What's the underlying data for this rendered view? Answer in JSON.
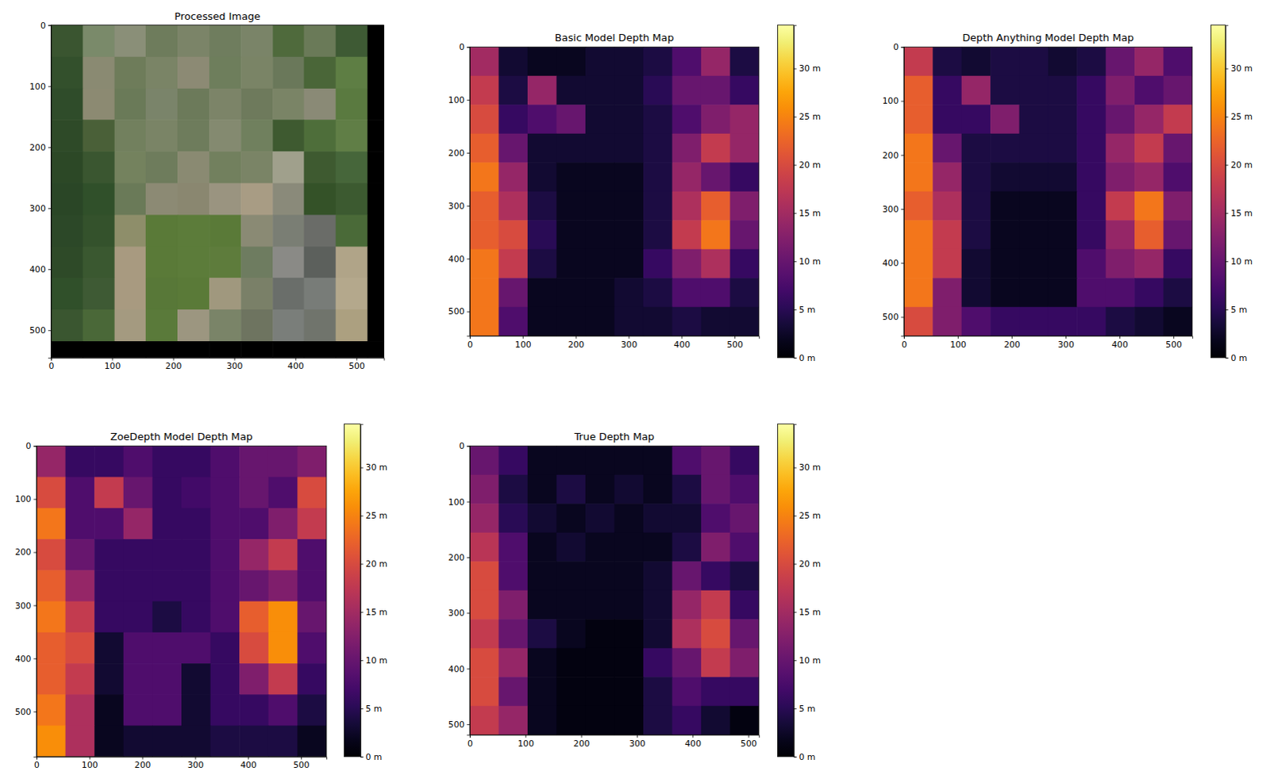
{
  "chart_data": [
    {
      "type": "image",
      "title": "Processed Image",
      "xlim": [
        0,
        545
      ],
      "ylim": [
        545,
        0
      ],
      "xticks": [
        0,
        100,
        200,
        300,
        400,
        500
      ],
      "yticks": [
        0,
        100,
        200,
        300,
        400,
        500
      ],
      "x_edges": [
        0,
        52,
        104,
        155,
        207,
        259,
        311,
        363,
        414,
        466,
        518,
        545
      ],
      "y_edges": [
        0,
        52,
        104,
        155,
        207,
        259,
        311,
        363,
        414,
        466,
        518,
        545
      ],
      "colors": [
        [
          "#3a5530",
          "#7a8a6a",
          "#8a8f78",
          "#6e7c5c",
          "#7b8468",
          "#6f7d5e",
          "#7a8468",
          "#4f6a3c",
          "#6a7a58",
          "#3e5a34",
          "#000000"
        ],
        [
          "#33502c",
          "#8a8a72",
          "#6e7c5a",
          "#7a8466",
          "#8c8a74",
          "#6e7e5c",
          "#7a8466",
          "#6a785a",
          "#4a6638",
          "#5e7e44",
          "#000000"
        ],
        [
          "#2f4c2a",
          "#8c8a72",
          "#6a7a58",
          "#7a846a",
          "#6c7a5a",
          "#7c8468",
          "#6e7a5c",
          "#7a8466",
          "#8a8a76",
          "#5a7a40",
          "#000000"
        ],
        [
          "#2e4a28",
          "#4a6038",
          "#72805e",
          "#7a8466",
          "#6e7c5c",
          "#848a70",
          "#70805e",
          "#3e5a30",
          "#4e6e3a",
          "#607e46",
          "#000000"
        ],
        [
          "#2c4826",
          "#3a5630",
          "#74825e",
          "#6e7c5c",
          "#8a8a72",
          "#72805e",
          "#7a8466",
          "#a0a08c",
          "#3e5a30",
          "#46663a",
          "#000000"
        ],
        [
          "#2a4626",
          "#30502a",
          "#6a7a58",
          "#8c8a74",
          "#8a8770",
          "#9a9480",
          "#a89c84",
          "#8a8a7a",
          "#345228",
          "#3c5a30",
          "#000000"
        ],
        [
          "#2c4828",
          "#34522c",
          "#8e8e6a",
          "#5a7a38",
          "#5c7c3a",
          "#5a7a38",
          "#8a8a74",
          "#7a7e74",
          "#6a6c68",
          "#4a6a38",
          "#000000"
        ],
        [
          "#2e4a28",
          "#3a5830",
          "#a89a80",
          "#5a7a38",
          "#5c7c3a",
          "#5e7c3c",
          "#6e7c60",
          "#8a8a86",
          "#5c605c",
          "#b0a488",
          "#000000"
        ],
        [
          "#30502a",
          "#3e5a34",
          "#a89a80",
          "#587838",
          "#5a7a38",
          "#a0987e",
          "#7a8068",
          "#6a6e6a",
          "#787c78",
          "#b4a88c",
          "#000000"
        ],
        [
          "#3a5630",
          "#4a6838",
          "#a49a80",
          "#5a7a3a",
          "#9c9680",
          "#7a8468",
          "#6e7460",
          "#7a7e7a",
          "#70746c",
          "#aca080",
          "#000000"
        ],
        [
          "#000000",
          "#000000",
          "#000000",
          "#000000",
          "#000000",
          "#000000",
          "#000000",
          "#000000",
          "#000000",
          "#000000",
          "#000000"
        ]
      ]
    },
    {
      "type": "heatmap",
      "title": "Basic Model Depth Map",
      "color": "inferno",
      "xlim": [
        0,
        546
      ],
      "ylim": [
        546,
        0
      ],
      "xticks": [
        0,
        100,
        200,
        300,
        400,
        500
      ],
      "yticks": [
        0,
        100,
        200,
        300,
        400,
        500
      ],
      "x_edges": [
        0,
        54.6,
        109.2,
        163.8,
        218.4,
        273,
        327.6,
        382.2,
        436.8,
        491.4,
        546
      ],
      "y_edges": [
        0,
        54.6,
        109.2,
        163.8,
        218.4,
        273,
        327.6,
        382.2,
        436.8,
        491.4,
        546
      ],
      "z": [
        [
          15,
          3,
          2,
          2,
          3,
          3,
          4,
          8,
          14,
          4
        ],
        [
          18,
          4,
          14,
          3,
          3,
          3,
          5,
          10,
          10,
          6
        ],
        [
          20,
          6,
          8,
          10,
          3,
          3,
          4,
          8,
          12,
          14
        ],
        [
          22,
          10,
          3,
          3,
          3,
          3,
          4,
          12,
          18,
          14
        ],
        [
          24,
          14,
          3,
          2,
          2,
          2,
          4,
          14,
          10,
          6
        ],
        [
          22,
          16,
          4,
          2,
          2,
          2,
          4,
          16,
          22,
          12
        ],
        [
          22,
          20,
          5,
          2,
          2,
          2,
          4,
          18,
          24,
          10
        ],
        [
          24,
          18,
          4,
          2,
          2,
          2,
          6,
          12,
          16,
          6
        ],
        [
          24,
          10,
          2,
          2,
          2,
          3,
          4,
          8,
          8,
          4
        ],
        [
          24,
          8,
          2,
          2,
          2,
          3,
          3,
          4,
          3,
          3
        ]
      ],
      "colorbar": {
        "lim": [
          0,
          34.5
        ],
        "ticks": [
          {
            "value": 0,
            "label": "0 m"
          },
          {
            "value": 5,
            "label": "5 m"
          },
          {
            "value": 10,
            "label": "10 m"
          },
          {
            "value": 15,
            "label": "15 m"
          },
          {
            "value": 20,
            "label": "20 m"
          },
          {
            "value": 25,
            "label": "25 m"
          },
          {
            "value": 30,
            "label": "30 m"
          }
        ]
      }
    },
    {
      "type": "heatmap",
      "title": "Depth Anything Model Depth Map",
      "color": "inferno",
      "xlim": [
        0,
        535
      ],
      "ylim": [
        535,
        0
      ],
      "xticks": [
        0,
        100,
        200,
        300,
        400,
        500
      ],
      "yticks": [
        0,
        100,
        200,
        300,
        400,
        500
      ],
      "x_edges": [
        0,
        53.5,
        107,
        160.5,
        214,
        267.5,
        321,
        374.5,
        428,
        481.5,
        535
      ],
      "y_edges": [
        0,
        53.5,
        107,
        160.5,
        214,
        267.5,
        321,
        374.5,
        428,
        481.5,
        535
      ],
      "z": [
        [
          18,
          4,
          3,
          4,
          4,
          3,
          4,
          10,
          14,
          8
        ],
        [
          22,
          6,
          14,
          4,
          4,
          4,
          6,
          12,
          8,
          10
        ],
        [
          22,
          6,
          6,
          12,
          4,
          4,
          6,
          10,
          14,
          18
        ],
        [
          24,
          10,
          4,
          4,
          4,
          4,
          6,
          14,
          18,
          10
        ],
        [
          24,
          14,
          4,
          3,
          3,
          3,
          6,
          12,
          14,
          8
        ],
        [
          22,
          16,
          4,
          2,
          2,
          2,
          6,
          18,
          24,
          12
        ],
        [
          24,
          18,
          4,
          2,
          2,
          2,
          6,
          14,
          22,
          10
        ],
        [
          24,
          18,
          3,
          2,
          2,
          2,
          8,
          12,
          14,
          6
        ],
        [
          24,
          12,
          3,
          2,
          2,
          2,
          8,
          8,
          6,
          4
        ],
        [
          20,
          12,
          8,
          6,
          6,
          6,
          6,
          4,
          3,
          2
        ]
      ],
      "colorbar": {
        "lim": [
          0,
          34.5
        ],
        "ticks": [
          {
            "value": 0,
            "label": "0 m"
          },
          {
            "value": 5,
            "label": "5 m"
          },
          {
            "value": 10,
            "label": "10 m"
          },
          {
            "value": 15,
            "label": "15 m"
          },
          {
            "value": 20,
            "label": "20 m"
          },
          {
            "value": 25,
            "label": "25 m"
          },
          {
            "value": 30,
            "label": "30 m"
          }
        ]
      }
    },
    {
      "type": "heatmap",
      "title": "ZoeDepth Model Depth Map",
      "color": "inferno",
      "xlim": [
        0,
        548
      ],
      "ylim": [
        585,
        0
      ],
      "xticks": [
        0,
        100,
        200,
        300,
        400,
        500
      ],
      "yticks": [
        0,
        100,
        200,
        300,
        400,
        500
      ],
      "x_edges": [
        0,
        54.8,
        109.6,
        164.4,
        219.2,
        274,
        328.8,
        383.6,
        438.4,
        493.2,
        548
      ],
      "y_edges": [
        0,
        58.5,
        117,
        175.5,
        234,
        292.5,
        351,
        409.5,
        468,
        526.5,
        585
      ],
      "z": [
        [
          14,
          6,
          6,
          8,
          6,
          6,
          8,
          10,
          10,
          12
        ],
        [
          20,
          8,
          18,
          10,
          6,
          7,
          8,
          10,
          8,
          20
        ],
        [
          24,
          8,
          8,
          14,
          6,
          6,
          8,
          8,
          12,
          18
        ],
        [
          20,
          10,
          6,
          6,
          6,
          6,
          8,
          14,
          18,
          8
        ],
        [
          22,
          14,
          6,
          6,
          6,
          6,
          8,
          10,
          12,
          8
        ],
        [
          24,
          18,
          6,
          6,
          4,
          6,
          8,
          22,
          26,
          10
        ],
        [
          22,
          20,
          3,
          8,
          8,
          8,
          6,
          20,
          26,
          8
        ],
        [
          22,
          18,
          3,
          8,
          8,
          3,
          6,
          12,
          18,
          6
        ],
        [
          24,
          16,
          2,
          8,
          8,
          3,
          6,
          6,
          8,
          4
        ],
        [
          26,
          16,
          2,
          3,
          3,
          3,
          4,
          4,
          4,
          2
        ]
      ],
      "colorbar": {
        "lim": [
          0,
          34.5
        ],
        "ticks": [
          {
            "value": 0,
            "label": "0 m"
          },
          {
            "value": 5,
            "label": "5 m"
          },
          {
            "value": 10,
            "label": "10 m"
          },
          {
            "value": 15,
            "label": "15 m"
          },
          {
            "value": 20,
            "label": "20 m"
          },
          {
            "value": 25,
            "label": "25 m"
          },
          {
            "value": 30,
            "label": "30 m"
          }
        ]
      }
    },
    {
      "type": "heatmap",
      "title": "True Depth Map",
      "color": "inferno",
      "xlim": [
        0,
        519
      ],
      "ylim": [
        519,
        0
      ],
      "xticks": [
        0,
        100,
        200,
        300,
        400,
        500
      ],
      "yticks": [
        0,
        100,
        200,
        300,
        400,
        500
      ],
      "x_edges": [
        0,
        51.9,
        103.8,
        155.7,
        207.6,
        259.5,
        311.4,
        363.3,
        415.2,
        467.1,
        519
      ],
      "y_edges": [
        0,
        51.9,
        103.8,
        155.7,
        207.6,
        259.5,
        311.4,
        363.3,
        415.2,
        467.1,
        519
      ],
      "z": [
        [
          10,
          6,
          2,
          2,
          2,
          2,
          2,
          8,
          10,
          6
        ],
        [
          12,
          4,
          2,
          4,
          2,
          3,
          2,
          4,
          10,
          8
        ],
        [
          14,
          5,
          3,
          2,
          3,
          2,
          3,
          3,
          8,
          10
        ],
        [
          17,
          8,
          2,
          3,
          2,
          2,
          2,
          4,
          12,
          8
        ],
        [
          20,
          8,
          2,
          2,
          2,
          2,
          3,
          10,
          6,
          4
        ],
        [
          20,
          12,
          2,
          2,
          2,
          2,
          3,
          14,
          18,
          6
        ],
        [
          18,
          10,
          4,
          2,
          1,
          1,
          3,
          16,
          20,
          10
        ],
        [
          20,
          14,
          2,
          1,
          1,
          1,
          6,
          10,
          18,
          12
        ],
        [
          20,
          10,
          2,
          1,
          1,
          1,
          4,
          8,
          6,
          6
        ],
        [
          18,
          14,
          2,
          1,
          1,
          1,
          4,
          6,
          3,
          1
        ]
      ],
      "colorbar": {
        "lim": [
          0,
          34.5
        ],
        "ticks": [
          {
            "value": 0,
            "label": "0 m"
          },
          {
            "value": 5,
            "label": "5 m"
          },
          {
            "value": 10,
            "label": "10 m"
          },
          {
            "value": 15,
            "label": "15 m"
          },
          {
            "value": 20,
            "label": "20 m"
          },
          {
            "value": 25,
            "label": "25 m"
          },
          {
            "value": 30,
            "label": "30 m"
          }
        ]
      }
    }
  ]
}
